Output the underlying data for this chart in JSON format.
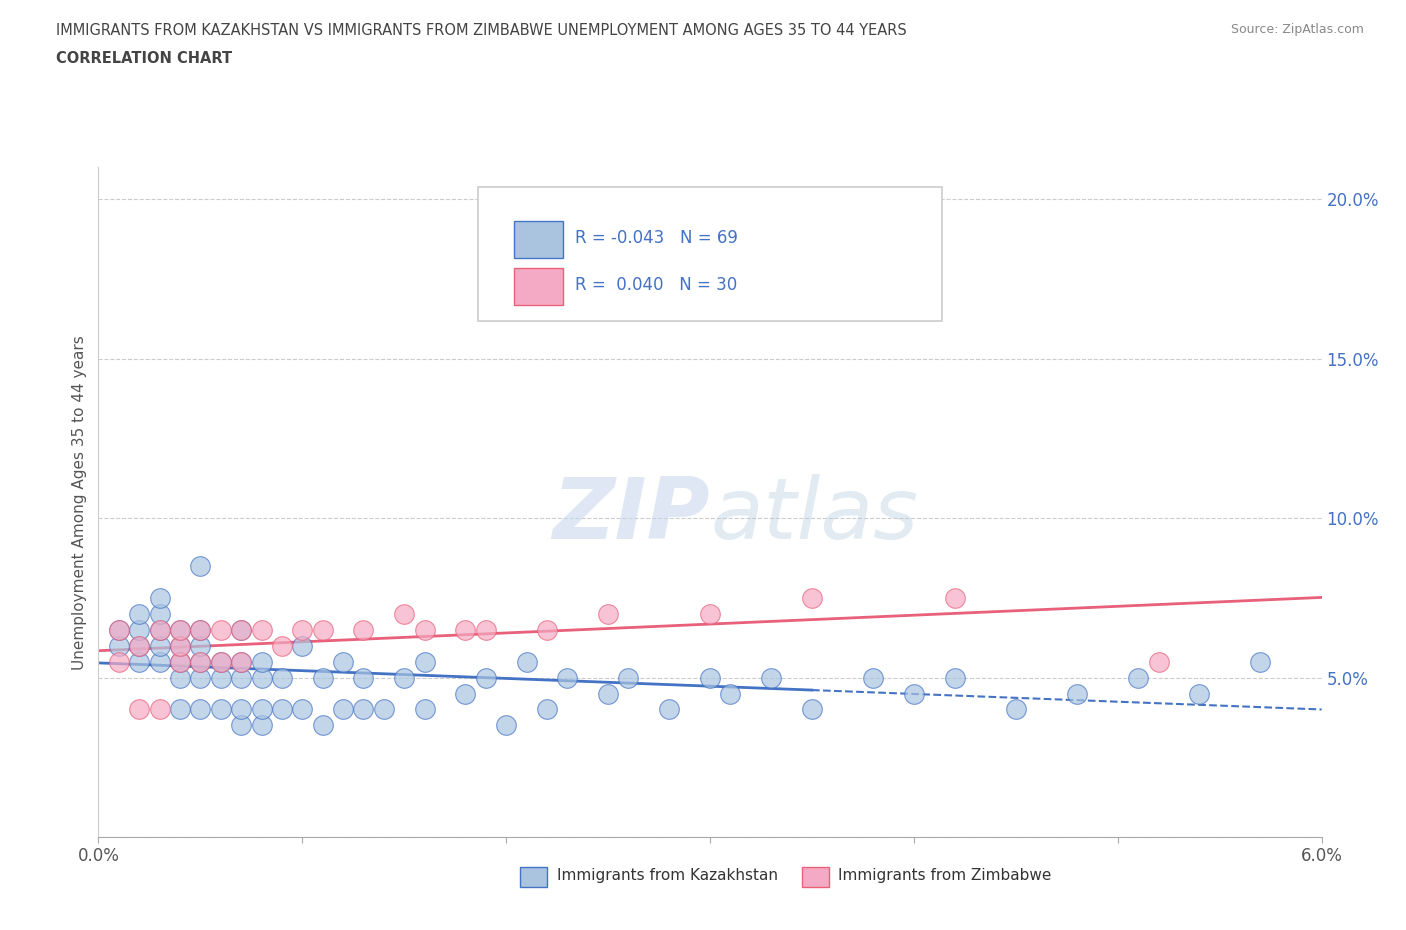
{
  "title_line1": "IMMIGRANTS FROM KAZAKHSTAN VS IMMIGRANTS FROM ZIMBABWE UNEMPLOYMENT AMONG AGES 35 TO 44 YEARS",
  "title_line2": "CORRELATION CHART",
  "source_text": "Source: ZipAtlas.com",
  "ylabel": "Unemployment Among Ages 35 to 44 years",
  "xlim": [
    0.0,
    0.06
  ],
  "ylim": [
    0.0,
    0.21
  ],
  "xticks": [
    0.0,
    0.01,
    0.02,
    0.03,
    0.04,
    0.05,
    0.06
  ],
  "xticklabels": [
    "0.0%",
    "",
    "",
    "",
    "",
    "",
    "6.0%"
  ],
  "yticks": [
    0.0,
    0.05,
    0.1,
    0.15,
    0.2
  ],
  "yticklabels": [
    "",
    "5.0%",
    "10.0%",
    "15.0%",
    "20.0%"
  ],
  "R_kaz": -0.043,
  "N_kaz": 69,
  "R_zim": 0.04,
  "N_zim": 30,
  "color_kaz": "#aac4e0",
  "color_zim": "#f4aac4",
  "line_color_kaz": "#4472c4",
  "line_color_zim": "#e8607a",
  "ytick_color": "#4472c4",
  "watermark_color": "#c8d8ec",
  "legend_label_kaz": "Immigrants from Kazakhstan",
  "legend_label_zim": "Immigrants from Zimbabwe",
  "kaz_x": [
    0.001,
    0.001,
    0.002,
    0.002,
    0.002,
    0.002,
    0.003,
    0.003,
    0.003,
    0.003,
    0.003,
    0.004,
    0.004,
    0.004,
    0.004,
    0.004,
    0.005,
    0.005,
    0.005,
    0.005,
    0.005,
    0.005,
    0.006,
    0.006,
    0.006,
    0.007,
    0.007,
    0.007,
    0.007,
    0.007,
    0.008,
    0.008,
    0.008,
    0.008,
    0.009,
    0.009,
    0.01,
    0.01,
    0.011,
    0.011,
    0.012,
    0.012,
    0.013,
    0.013,
    0.014,
    0.015,
    0.016,
    0.016,
    0.018,
    0.019,
    0.02,
    0.021,
    0.022,
    0.023,
    0.025,
    0.026,
    0.028,
    0.03,
    0.031,
    0.033,
    0.035,
    0.038,
    0.04,
    0.042,
    0.045,
    0.048,
    0.051,
    0.054,
    0.057
  ],
  "kaz_y": [
    0.06,
    0.065,
    0.055,
    0.06,
    0.065,
    0.07,
    0.055,
    0.06,
    0.065,
    0.07,
    0.075,
    0.04,
    0.05,
    0.055,
    0.06,
    0.065,
    0.04,
    0.05,
    0.055,
    0.06,
    0.065,
    0.085,
    0.04,
    0.05,
    0.055,
    0.035,
    0.04,
    0.05,
    0.055,
    0.065,
    0.035,
    0.04,
    0.05,
    0.055,
    0.04,
    0.05,
    0.04,
    0.06,
    0.035,
    0.05,
    0.04,
    0.055,
    0.04,
    0.05,
    0.04,
    0.05,
    0.04,
    0.055,
    0.045,
    0.05,
    0.035,
    0.055,
    0.04,
    0.05,
    0.045,
    0.05,
    0.04,
    0.05,
    0.045,
    0.05,
    0.04,
    0.05,
    0.045,
    0.05,
    0.04,
    0.045,
    0.05,
    0.045,
    0.055
  ],
  "zim_x": [
    0.001,
    0.001,
    0.002,
    0.002,
    0.003,
    0.003,
    0.004,
    0.004,
    0.004,
    0.005,
    0.005,
    0.006,
    0.006,
    0.007,
    0.007,
    0.008,
    0.009,
    0.01,
    0.011,
    0.013,
    0.015,
    0.016,
    0.018,
    0.019,
    0.022,
    0.025,
    0.03,
    0.035,
    0.042,
    0.052
  ],
  "zim_y": [
    0.055,
    0.065,
    0.04,
    0.06,
    0.04,
    0.065,
    0.055,
    0.06,
    0.065,
    0.055,
    0.065,
    0.055,
    0.065,
    0.055,
    0.065,
    0.065,
    0.06,
    0.065,
    0.065,
    0.065,
    0.07,
    0.065,
    0.065,
    0.065,
    0.065,
    0.07,
    0.07,
    0.075,
    0.075,
    0.055
  ]
}
